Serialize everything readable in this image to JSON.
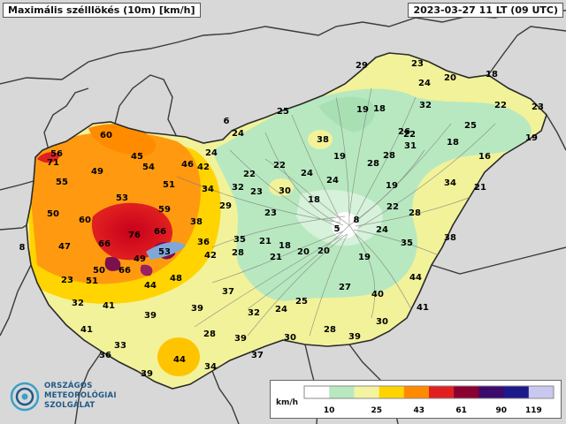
{
  "title": "Maximális szélllökés (10m) [km/h]",
  "timestamp": "2023-03-27 11 LT  (09 UTC)",
  "logo": {
    "lines": [
      "ORSZÁGOS",
      "METEOROLÓGIAI",
      "SZOLGÁLAT"
    ],
    "color": "#1f5a8a"
  },
  "legend": {
    "unit": "km/h",
    "ticks": [
      10,
      25,
      43,
      61,
      90,
      119
    ],
    "colors": [
      "#ffffff",
      "#b8e8c0",
      "#f4f4a0",
      "#ffd400",
      "#ff8a00",
      "#e02020",
      "#8a0030",
      "#3b0a6a",
      "#1a1a8a",
      "#c8c8f0"
    ]
  },
  "stations": [
    {
      "v": "60"
    },
    {
      "v": "56"
    },
    {
      "v": "71"
    },
    {
      "v": "45"
    },
    {
      "v": "49"
    },
    {
      "v": "54"
    },
    {
      "v": "46"
    },
    {
      "v": "42"
    },
    {
      "v": "24"
    },
    {
      "v": "55"
    },
    {
      "v": "53"
    },
    {
      "v": "51"
    },
    {
      "v": "34"
    },
    {
      "v": "50"
    },
    {
      "v": "60"
    },
    {
      "v": "59"
    },
    {
      "v": "38"
    },
    {
      "v": "8"
    },
    {
      "v": "47"
    },
    {
      "v": "66"
    },
    {
      "v": "76"
    },
    {
      "v": "66"
    },
    {
      "v": "53"
    },
    {
      "v": "49"
    },
    {
      "v": "36"
    },
    {
      "v": "42"
    },
    {
      "v": "50"
    },
    {
      "v": "66"
    },
    {
      "v": "51"
    },
    {
      "v": "23"
    },
    {
      "v": "44"
    },
    {
      "v": "48"
    },
    {
      "v": "32"
    },
    {
      "v": "41"
    },
    {
      "v": "39"
    },
    {
      "v": "39"
    },
    {
      "v": "41"
    },
    {
      "v": "33"
    },
    {
      "v": "36"
    },
    {
      "v": "44"
    },
    {
      "v": "39"
    },
    {
      "v": "34"
    },
    {
      "v": "28"
    },
    {
      "v": "37"
    },
    {
      "v": "39"
    },
    {
      "v": "32"
    },
    {
      "v": "37"
    },
    {
      "v": "29"
    },
    {
      "v": "35"
    },
    {
      "v": "28"
    },
    {
      "v": "22"
    },
    {
      "v": "32"
    },
    {
      "v": "23"
    },
    {
      "v": "30"
    },
    {
      "v": "22"
    },
    {
      "v": "24"
    },
    {
      "v": "6"
    },
    {
      "v": "25"
    },
    {
      "v": "24"
    },
    {
      "v": "21"
    },
    {
      "v": "19"
    },
    {
      "v": "18"
    },
    {
      "v": "38"
    },
    {
      "v": "19"
    },
    {
      "v": "24"
    },
    {
      "v": "28"
    },
    {
      "v": "19"
    },
    {
      "v": "18"
    },
    {
      "v": "23"
    },
    {
      "v": "18"
    },
    {
      "v": "20"
    },
    {
      "v": "21"
    },
    {
      "v": "8"
    },
    {
      "v": "5"
    },
    {
      "v": "22"
    },
    {
      "v": "24"
    },
    {
      "v": "19"
    },
    {
      "v": "25"
    },
    {
      "v": "24"
    },
    {
      "v": "27"
    },
    {
      "v": "28"
    },
    {
      "v": "40"
    },
    {
      "v": "30"
    },
    {
      "v": "28"
    },
    {
      "v": "39"
    },
    {
      "v": "30"
    },
    {
      "v": "41"
    },
    {
      "v": "44"
    },
    {
      "v": "35"
    },
    {
      "v": "38"
    },
    {
      "v": "28"
    },
    {
      "v": "22"
    },
    {
      "v": "34"
    },
    {
      "v": "21"
    },
    {
      "v": "31"
    },
    {
      "v": "26"
    },
    {
      "v": "18"
    },
    {
      "v": "16"
    },
    {
      "v": "25"
    },
    {
      "v": "32"
    },
    {
      "v": "22"
    },
    {
      "v": "23"
    },
    {
      "v": "19"
    },
    {
      "v": "29"
    },
    {
      "v": "23"
    },
    {
      "v": "24"
    },
    {
      "v": "20"
    },
    {
      "v": "18"
    },
    {
      "v": "20"
    }
  ]
}
